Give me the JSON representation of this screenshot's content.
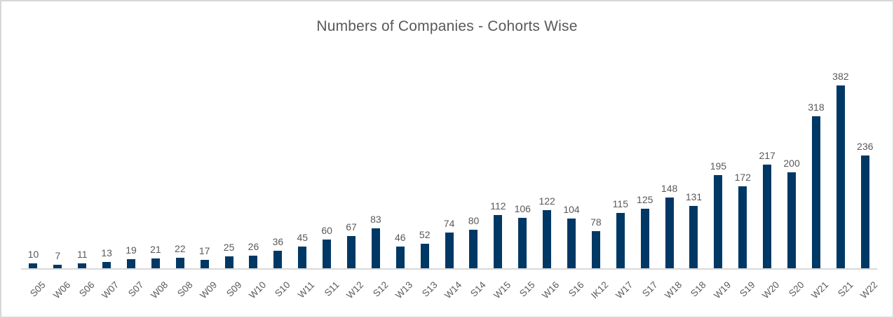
{
  "chart_data": {
    "type": "bar",
    "title": "Numbers of Companies - Cohorts Wise",
    "categories": [
      "S05",
      "W06",
      "S06",
      "W07",
      "S07",
      "W08",
      "S08",
      "W09",
      "S09",
      "W10",
      "S10",
      "W11",
      "S11",
      "W12",
      "S12",
      "W13",
      "S13",
      "W14",
      "S14",
      "W15",
      "S15",
      "W16",
      "S16",
      "IK12",
      "W17",
      "S17",
      "W18",
      "S18",
      "W19",
      "S19",
      "W20",
      "S20",
      "W21",
      "S21",
      "W22"
    ],
    "values": [
      10,
      7,
      11,
      13,
      19,
      21,
      22,
      17,
      25,
      26,
      36,
      45,
      60,
      67,
      83,
      46,
      52,
      74,
      80,
      112,
      106,
      122,
      104,
      78,
      115,
      125,
      148,
      131,
      195,
      172,
      217,
      200,
      318,
      382,
      236
    ],
    "xlabel": "",
    "ylabel": "",
    "ylim": [
      0,
      400
    ],
    "grid": false,
    "legend": false,
    "data_labels": true,
    "x_tick_rotation_deg": 45,
    "bar_color": "#003865",
    "label_color": "#595959",
    "axis_color": "#d9d9d9",
    "background_color": "#ffffff"
  }
}
